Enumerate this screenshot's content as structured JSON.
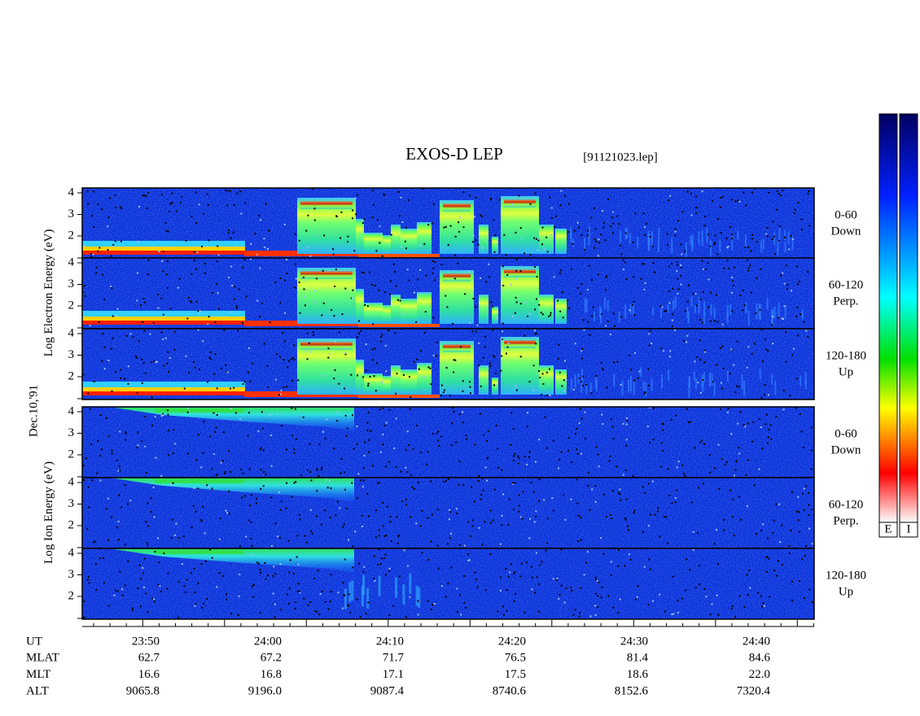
{
  "header": {
    "title": "EXOS-D LEP",
    "file": "[91121023.lep]"
  },
  "date_label": "Dec.10,'91",
  "electron_axis_label": [
    "Log",
    "Electron",
    "Energy",
    "(eV)"
  ],
  "ion_axis_label": [
    "Log",
    "Ion",
    "Energy",
    "(eV)"
  ],
  "panels": [
    {
      "species": "electron",
      "label": [
        "0-60",
        "Down"
      ],
      "yticks": [
        "2",
        "3",
        "4"
      ]
    },
    {
      "species": "electron",
      "label": [
        "60-120",
        "Perp."
      ],
      "yticks": [
        "2",
        "3",
        "4"
      ]
    },
    {
      "species": "electron",
      "label": [
        "120-180",
        "Up"
      ],
      "yticks": [
        "2",
        "3",
        "4"
      ]
    },
    {
      "species": "ion",
      "label": [
        "0-60",
        "Down"
      ],
      "yticks": [
        "2",
        "3",
        "4"
      ]
    },
    {
      "species": "ion",
      "label": [
        "60-120",
        "Perp."
      ],
      "yticks": [
        "2",
        "3",
        "4"
      ]
    },
    {
      "species": "ion",
      "label": [
        "120-180",
        "Up"
      ],
      "yticks": [
        "2",
        "3",
        "4"
      ]
    }
  ],
  "colorbars": [
    "E",
    "I"
  ],
  "table": {
    "row_labels": [
      "UT",
      "MLAT",
      "MLT",
      "ALT"
    ],
    "columns": [
      [
        "23:50",
        "62.7",
        "16.6",
        "9065.8"
      ],
      [
        "24:00",
        "67.2",
        "16.8",
        "9196.0"
      ],
      [
        "24:10",
        "71.7",
        "17.1",
        "9087.4"
      ],
      [
        "24:20",
        "76.5",
        "17.5",
        "8740.6"
      ],
      [
        "24:30",
        "81.4",
        "18.6",
        "8152.6"
      ],
      [
        "24:40",
        "84.6",
        "22.0",
        "7320.4"
      ]
    ]
  }
}
